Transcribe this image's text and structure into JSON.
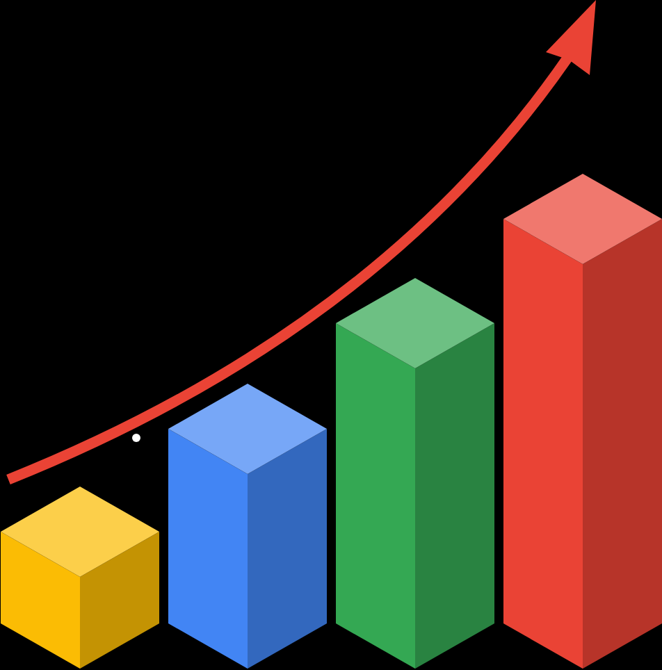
{
  "chart_data": {
    "type": "bar",
    "categories": [
      null,
      null,
      null,
      null
    ],
    "values": [
      132,
      280,
      432,
      582
    ],
    "colors": [
      "#fbbc04",
      "#4285f4",
      "#34a853",
      "#ea4335"
    ],
    "ylim": [
      0,
      600
    ],
    "tick_labels": false,
    "grid": false
  }
}
